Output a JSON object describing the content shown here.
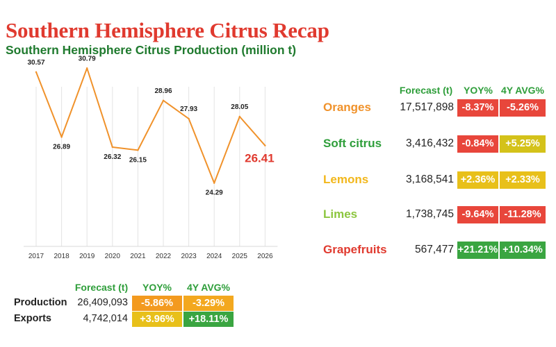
{
  "title": "Southern Hemisphere Citrus Recap",
  "subtitle": "Southern Hemisphere Citrus Production (million t)",
  "chart_data": {
    "type": "line",
    "title": "Southern Hemisphere Citrus Production (million t)",
    "categories": [
      "2017",
      "2018",
      "2019",
      "2020",
      "2021",
      "2022",
      "2023",
      "2024",
      "2025",
      "2026"
    ],
    "values": [
      30.57,
      26.89,
      30.79,
      26.32,
      26.15,
      28.96,
      27.93,
      24.29,
      28.05,
      26.41
    ],
    "value_labels": [
      "30.57",
      "26.89",
      "30.79",
      "26.32",
      "26.15",
      "28.96",
      "27.93",
      "24.29",
      "28.05",
      "26.41"
    ],
    "ylim": [
      22,
      33
    ],
    "grid": "vertical",
    "line_color": "#f0922b",
    "highlight_color": "#e03a2f"
  },
  "fruit_table": {
    "headers": {
      "forecast": "Forecast (t)",
      "yoy": "YOY%",
      "avg": "4Y AVG%"
    },
    "rows": [
      {
        "name": "Oranges",
        "name_color": "#f0922b",
        "forecast": "17,517,898",
        "yoy": "-8.37%",
        "yoy_color": "#e8463b",
        "avg": "-5.26%",
        "avg_color": "#e8463b"
      },
      {
        "name": "Soft citrus",
        "name_color": "#2e9e3a",
        "forecast": "3,416,432",
        "yoy": "-0.84%",
        "yoy_color": "#e8463b",
        "avg": "+5.25%",
        "avg_color": "#d4c21a"
      },
      {
        "name": "Lemons",
        "name_color": "#f2b71b",
        "forecast": "3,168,541",
        "yoy": "+2.36%",
        "yoy_color": "#e8c01a",
        "avg": "+2.33%",
        "avg_color": "#e8c01a"
      },
      {
        "name": "Limes",
        "name_color": "#8cc63f",
        "forecast": "1,738,745",
        "yoy": "-9.64%",
        "yoy_color": "#e8463b",
        "avg": "-11.28%",
        "avg_color": "#e8463b"
      },
      {
        "name": "Grapefruits",
        "name_color": "#e03a2f",
        "forecast": "567,477",
        "yoy": "+21.21%",
        "yoy_color": "#3aa541",
        "avg": "+10.34%",
        "avg_color": "#3aa541"
      }
    ]
  },
  "summary_table": {
    "headers": {
      "forecast": "Forecast (t)",
      "yoy": "YOY%",
      "avg": "4Y AVG%"
    },
    "rows": [
      {
        "label": "Production",
        "forecast": "26,409,093",
        "yoy": "-5.86%",
        "yoy_color": "#f39a1f",
        "avg": "-3.29%",
        "avg_color": "#f3a81f"
      },
      {
        "label": "Exports",
        "forecast": "4,742,014",
        "yoy": "+3.96%",
        "yoy_color": "#e8c01a",
        "avg": "+18.11%",
        "avg_color": "#3aa541"
      }
    ]
  }
}
